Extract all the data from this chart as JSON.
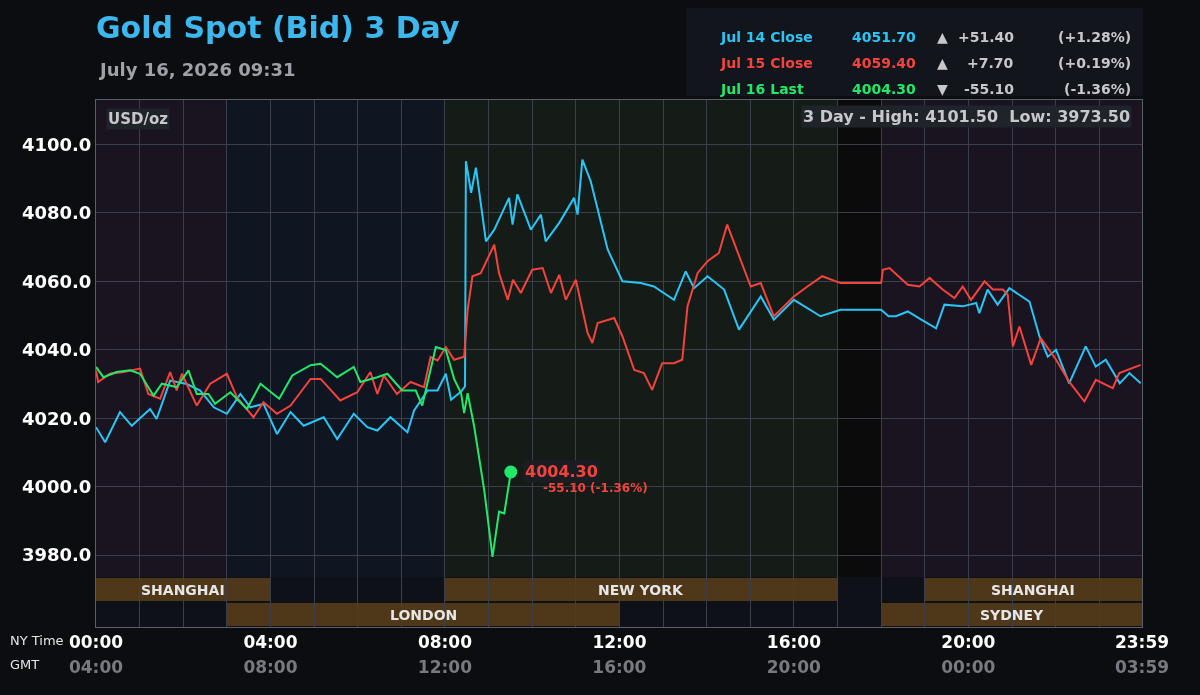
{
  "chart_data": {
    "type": "line",
    "title": "Gold Spot (Bid) 3 Day",
    "subtitle": "July 16, 2026 09:31",
    "ylabel": "USD/oz",
    "xlabel": "NY Time",
    "x2label": "GMT",
    "annotations": [
      "4051.70 ▲ +51.40 (+1.28%)",
      "4059.40 ▲ +7.70 (+0.19%)",
      "4004.30 ▼ -55.10 (-1.36%)",
      "3 Day - High: 4101.50  Low: 3973.50",
      {
        "text": "4004.30",
        "x": 9.51,
        "y": 4004.3
      },
      {
        "text": "-55.10 (-1.36%)",
        "x": 9.51,
        "y": 4004.3
      }
    ],
    "series": [
      {
        "name": "Jul 14 Close",
        "color": "#29c5f6",
        "x": [
          0,
          0.21,
          0.55,
          0.82,
          1.24,
          1.39,
          1.7,
          2.08,
          2.39,
          2.7,
          3.0,
          3.31,
          3.54,
          3.84,
          4.15,
          4.46,
          4.76,
          5.22,
          5.53,
          5.91,
          6.22,
          6.45,
          6.75,
          7.14,
          7.29,
          7.6,
          7.83,
          8.02,
          8.14,
          8.37,
          8.46,
          8.48,
          8.6,
          8.71,
          8.94,
          9.13,
          9.47,
          9.55,
          9.66,
          9.97,
          10.2,
          10.31,
          10.62,
          10.96,
          11.04,
          11.15,
          11.34,
          11.73,
          12.07,
          12.49,
          12.79,
          13.25,
          13.52,
          13.71,
          14.02,
          14.4,
          14.74,
          15.24,
          15.54,
          16.0,
          16.61,
          17.07,
          18,
          18.17,
          18.34,
          18.61,
          18.92,
          19.26,
          19.45,
          19.87,
          20.18,
          20.25,
          20.44,
          20.67,
          20.94,
          21.4,
          21.63,
          21.82,
          22.01,
          22.31,
          22.69,
          22.92,
          23.15,
          23.47,
          23.69,
          23.95
        ],
        "values": [
          4017.4,
          4013,
          4021.8,
          4017.8,
          4022.7,
          4019.8,
          4031,
          4030,
          4028.1,
          4023.2,
          4021.3,
          4027.1,
          4023.2,
          4024.2,
          4015.4,
          4021.8,
          4017.8,
          4020.3,
          4013.9,
          4021.3,
          4017.4,
          4016.4,
          4020.3,
          4015.9,
          4022.2,
          4028.1,
          4028.1,
          4033,
          4025.4,
          4027.8,
          4029.3,
          4095.1,
          4085.9,
          4093.2,
          4071.7,
          4075.1,
          4084.4,
          4076.6,
          4085.4,
          4075.1,
          4079.5,
          4071.7,
          4077.1,
          4084.4,
          4079.5,
          4095.6,
          4089.3,
          4069.3,
          4060,
          4059.5,
          4058.5,
          4054.6,
          4062.9,
          4058,
          4061.5,
          4057.6,
          4045.9,
          4055.6,
          4048.8,
          4054.6,
          4049.8,
          4051.7,
          4051.7,
          4049.8,
          4049.8,
          4051.2,
          4048.8,
          4046.3,
          4053.2,
          4052.7,
          4053.7,
          4050.7,
          4057.6,
          4053.2,
          4058,
          4054.1,
          4043.9,
          4038,
          4040,
          4030.2,
          4041,
          4035.1,
          4037.1,
          4030.2,
          4033.2,
          4030.2
        ]
      },
      {
        "name": "Jul 15 Close",
        "color": "#f4433c",
        "x": [
          0,
          0.05,
          0.32,
          0.63,
          1.01,
          1.2,
          1.47,
          1.7,
          1.85,
          1.97,
          2.31,
          2.62,
          3.0,
          3.23,
          3.61,
          3.84,
          4.15,
          4.46,
          4.92,
          5.15,
          5.6,
          5.99,
          6.29,
          6.45,
          6.6,
          6.9,
          7.21,
          7.52,
          7.67,
          7.83,
          8.02,
          8.21,
          8.44,
          8.52,
          8.63,
          8.82,
          9.13,
          9.24,
          9.44,
          9.56,
          9.74,
          10.0,
          10.24,
          10.43,
          10.62,
          10.77,
          11.0,
          11.27,
          11.38,
          11.5,
          11.88,
          12.07,
          12.34,
          12.56,
          12.75,
          12.98,
          13.25,
          13.44,
          13.56,
          13.79,
          14.02,
          14.28,
          14.47,
          14.66,
          15.01,
          15.24,
          15.54,
          15.77,
          16.0,
          16.31,
          16.65,
          17.07,
          18,
          18.04,
          18.19,
          18.61,
          18.88,
          19.11,
          19.41,
          19.68,
          19.87,
          20.06,
          20.37,
          20.56,
          20.79,
          20.9,
          21.02,
          21.17,
          21.44,
          21.66,
          22.01,
          22.31,
          22.66,
          22.92,
          23.31,
          23.46,
          23.95
        ],
        "values": [
          4034,
          4030.6,
          4033,
          4033.5,
          4034.5,
          4027.1,
          4025.7,
          4033.5,
          4028.1,
          4033,
          4023.7,
          4030.1,
          4033,
          4026.2,
          4020.3,
          4024.7,
          4021.3,
          4023.7,
          4031.5,
          4031.5,
          4025.2,
          4027.6,
          4033.5,
          4027.1,
          4032.5,
          4027.1,
          4030.6,
          4029.1,
          4037.9,
          4036.9,
          4040.8,
          4037.1,
          4038,
          4051.7,
          4061.5,
          4062.4,
          4070.7,
          4062.4,
          4054.6,
          4060.5,
          4056.6,
          4063.4,
          4063.9,
          4056.6,
          4061.9,
          4054.6,
          4060.5,
          4044.9,
          4042,
          4047.8,
          4049.3,
          4043.9,
          4034.1,
          4033.2,
          4028.3,
          4036.1,
          4036.1,
          4037.1,
          4052.7,
          4062.4,
          4065.9,
          4068.3,
          4076.6,
          4070.2,
          4058.5,
          4059.5,
          4049.8,
          4052.7,
          4055.6,
          4058.5,
          4061.5,
          4059.5,
          4059.5,
          4063.4,
          4063.9,
          4059,
          4058.5,
          4061,
          4057.6,
          4055.1,
          4058.5,
          4054.6,
          4060,
          4057.6,
          4057.6,
          4056.1,
          4041,
          4046.8,
          4035.6,
          4043.4,
          4037.1,
          4030.7,
          4024.9,
          4031.2,
          4028.8,
          4033.2,
          4035.6
        ]
      },
      {
        "name": "Jul 16 Last",
        "color": "#22e86a",
        "x": [
          0,
          0.17,
          0.47,
          0.78,
          1.01,
          1.32,
          1.51,
          1.85,
          2.12,
          2.31,
          2.58,
          2.73,
          3.08,
          3.46,
          3.77,
          4.2,
          4.5,
          4.92,
          5.15,
          5.53,
          5.91,
          6.06,
          6.45,
          6.68,
          7.02,
          7.33,
          7.48,
          7.79,
          8.02,
          8.21,
          8.37,
          8.44,
          8.52,
          8.67,
          8.9,
          9.09,
          9.24,
          9.36,
          9.51
        ],
        "values": [
          4035,
          4032,
          4033.5,
          4034,
          4033,
          4026.6,
          4030.1,
          4029.1,
          4034,
          4027.1,
          4027.1,
          4024.2,
          4027.6,
          4022.7,
          4030.1,
          4025.7,
          4032.5,
          4035.5,
          4035.9,
          4032,
          4035,
          4030.6,
          4032,
          4033,
          4028.1,
          4028.1,
          4023.7,
          4040.8,
          4039.9,
          4031.5,
          4027.3,
          4021.5,
          4027.3,
          4017.6,
          3999,
          3979.5,
          3992.7,
          3992.2,
          4004.3
        ]
      },
      {
        "type": "scatter",
        "color": "#22e86a",
        "x": [
          9.51
        ],
        "values": [
          4004.3
        ]
      }
    ],
    "bands": [
      {
        "axis": "x",
        "from": 0,
        "to": 3,
        "color": "#1a1320"
      },
      {
        "axis": "x",
        "from": 3,
        "to": 8,
        "color": "#101522"
      },
      {
        "axis": "x",
        "from": 8,
        "to": 17,
        "color": "#151c17"
      },
      {
        "axis": "x",
        "from": 17,
        "to": 18,
        "color": "#0b0b0b"
      },
      {
        "axis": "x",
        "from": 18,
        "to": 23.98,
        "color": "#1a1320"
      },
      {
        "axis": "x",
        "from": 0,
        "to": 4,
        "label": "SHANGHAI",
        "color": "#c8821e"
      },
      {
        "axis": "x",
        "from": 3,
        "to": 12,
        "label": "LONDON",
        "color": "#c8821e"
      },
      {
        "axis": "x",
        "from": 8,
        "to": 17,
        "label": "NEW YORK",
        "color": "#c8821e"
      },
      {
        "axis": "x",
        "from": 19,
        "to": 23.98,
        "label": "SHANGHAI",
        "color": "#c8821e"
      },
      {
        "axis": "x",
        "from": 18,
        "to": 23.98,
        "label": "SYDNEY",
        "color": "#c8821e"
      }
    ],
    "xlim": [
      0,
      23.98
    ],
    "xticks": [
      {
        "value": 0,
        "label": "00:00"
      },
      {
        "value": 1,
        "label": null
      },
      {
        "value": 2,
        "label": null
      },
      {
        "value": 3,
        "label": null
      },
      {
        "value": 4,
        "label": "04:00"
      },
      {
        "value": 5,
        "label": null
      },
      {
        "value": 6,
        "label": null
      },
      {
        "value": 7,
        "label": null
      },
      {
        "value": 8,
        "label": "08:00"
      },
      {
        "value": 9,
        "label": null
      },
      {
        "value": 10,
        "label": null
      },
      {
        "value": 11,
        "label": null
      },
      {
        "value": 12,
        "label": "12:00"
      },
      {
        "value": 13,
        "label": null
      },
      {
        "value": 14,
        "label": null
      },
      {
        "value": 15,
        "label": null
      },
      {
        "value": 16,
        "label": "16:00"
      },
      {
        "value": 17,
        "label": null
      },
      {
        "value": 18,
        "label": null
      },
      {
        "value": 19,
        "label": null
      },
      {
        "value": 20,
        "label": "20:00"
      },
      {
        "value": 21,
        "label": null
      },
      {
        "value": 22,
        "label": null
      },
      {
        "value": 23,
        "label": null
      },
      {
        "value": 23.98,
        "label": "23:59"
      }
    ],
    "x2lim": [
      "2026-07-16T04:00",
      "2026-07-17T03:59"
    ],
    "x2ticks": [
      {
        "value": "2026-07-16T04:00",
        "label": "04:00"
      },
      {
        "value": "2026-07-16T08:00",
        "label": "08:00"
      },
      {
        "value": "2026-07-16T12:00",
        "label": "12:00"
      },
      {
        "value": "2026-07-16T16:00",
        "label": "16:00"
      },
      {
        "value": "2026-07-16T20:00",
        "label": "20:00"
      },
      {
        "value": "2026-07-17T00:00",
        "label": "00:00"
      },
      {
        "value": "2026-07-17T03:59",
        "label": "03:59"
      }
    ],
    "ylim": [
      3959,
      4113
    ],
    "yticks": [
      {
        "value": 3980,
        "label": "3980.0"
      },
      {
        "value": 4000,
        "label": "4000.0"
      },
      {
        "value": 4020,
        "label": "4020.0"
      },
      {
        "value": 4040,
        "label": "4040.0"
      },
      {
        "value": 4060,
        "label": "4060.0"
      },
      {
        "value": 4080,
        "label": "4080.0"
      },
      {
        "value": 4100,
        "label": "4100.0"
      }
    ],
    "grid": true,
    "legend": "top right"
  }
}
